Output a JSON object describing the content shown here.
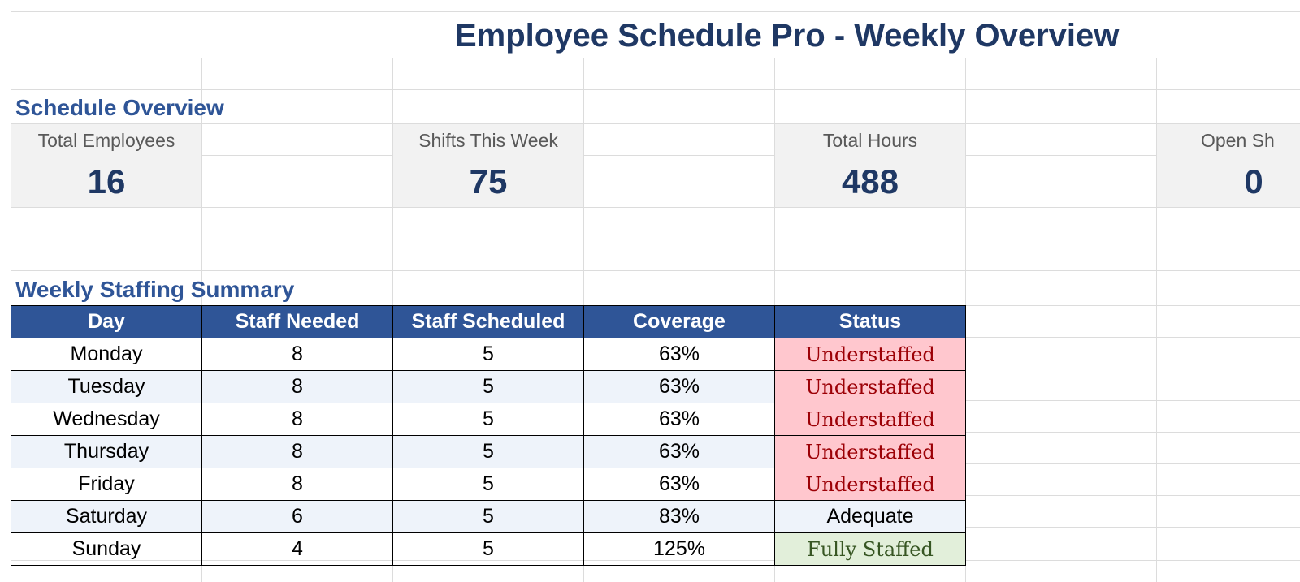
{
  "title": "Employee Schedule Pro - Weekly Overview",
  "overview": {
    "heading": "Schedule Overview",
    "kpis": [
      {
        "label": "Total Employees",
        "value": "16"
      },
      {
        "label": "Shifts This Week",
        "value": "75"
      },
      {
        "label": "Total Hours",
        "value": "488"
      },
      {
        "label": "Open Sh",
        "value": "0"
      }
    ]
  },
  "staffing": {
    "heading": "Weekly Staffing Summary",
    "columns": [
      "Day",
      "Staff Needed",
      "Staff Scheduled",
      "Coverage",
      "Status"
    ],
    "rows": [
      {
        "day": "Monday",
        "needed": "8",
        "scheduled": "5",
        "coverage": "63%",
        "status": "Understaffed"
      },
      {
        "day": "Tuesday",
        "needed": "8",
        "scheduled": "5",
        "coverage": "63%",
        "status": "Understaffed"
      },
      {
        "day": "Wednesday",
        "needed": "8",
        "scheduled": "5",
        "coverage": "63%",
        "status": "Understaffed"
      },
      {
        "day": "Thursday",
        "needed": "8",
        "scheduled": "5",
        "coverage": "63%",
        "status": "Understaffed"
      },
      {
        "day": "Friday",
        "needed": "8",
        "scheduled": "5",
        "coverage": "63%",
        "status": "Understaffed"
      },
      {
        "day": "Saturday",
        "needed": "6",
        "scheduled": "5",
        "coverage": "83%",
        "status": "Adequate"
      },
      {
        "day": "Sunday",
        "needed": "4",
        "scheduled": "5",
        "coverage": "125%",
        "status": "Fully Staffed"
      }
    ]
  },
  "colors": {
    "header_fill": "#2f5597",
    "title": "#1f3864",
    "understaffed_fill": "#ffc7ce",
    "fully_staffed_fill": "#e2efda"
  }
}
